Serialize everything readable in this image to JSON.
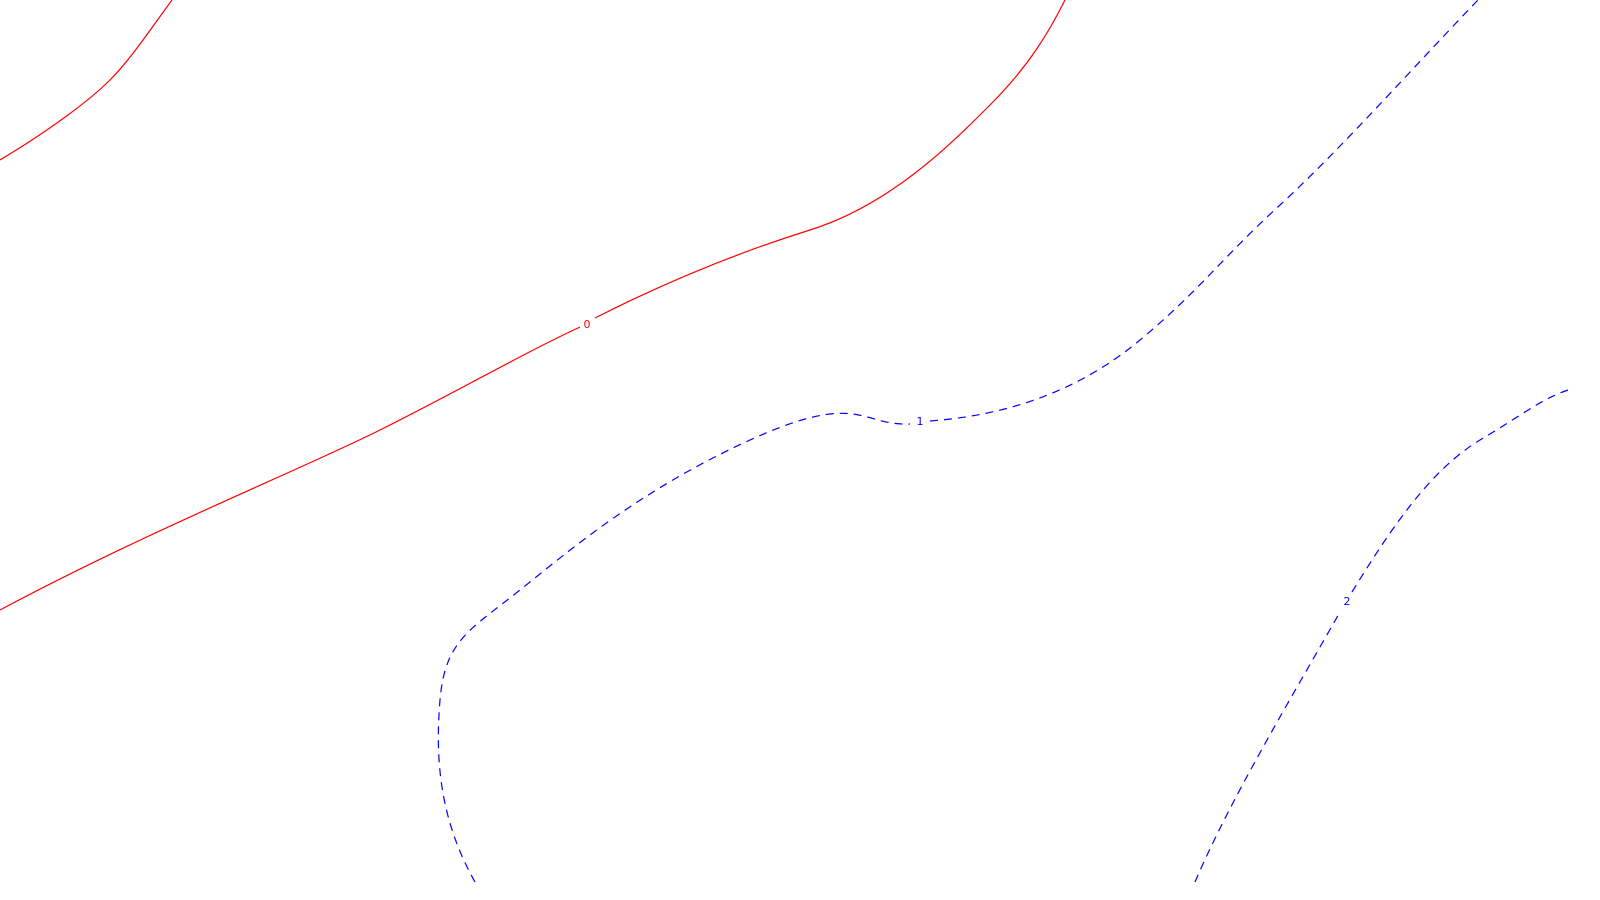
{
  "chart_data": {
    "type": "contour",
    "title": "",
    "xlabel": "",
    "ylabel": "",
    "axes_visible": false,
    "grid": false,
    "levels": [
      {
        "value": 0,
        "label": "0",
        "color": "#ff0000",
        "style": "solid"
      },
      {
        "value": 1,
        "label": "1",
        "color": "#0000ff",
        "style": "dashed"
      },
      {
        "value": 2,
        "label": "2",
        "color": "#0000ff",
        "style": "dashed"
      }
    ]
  }
}
